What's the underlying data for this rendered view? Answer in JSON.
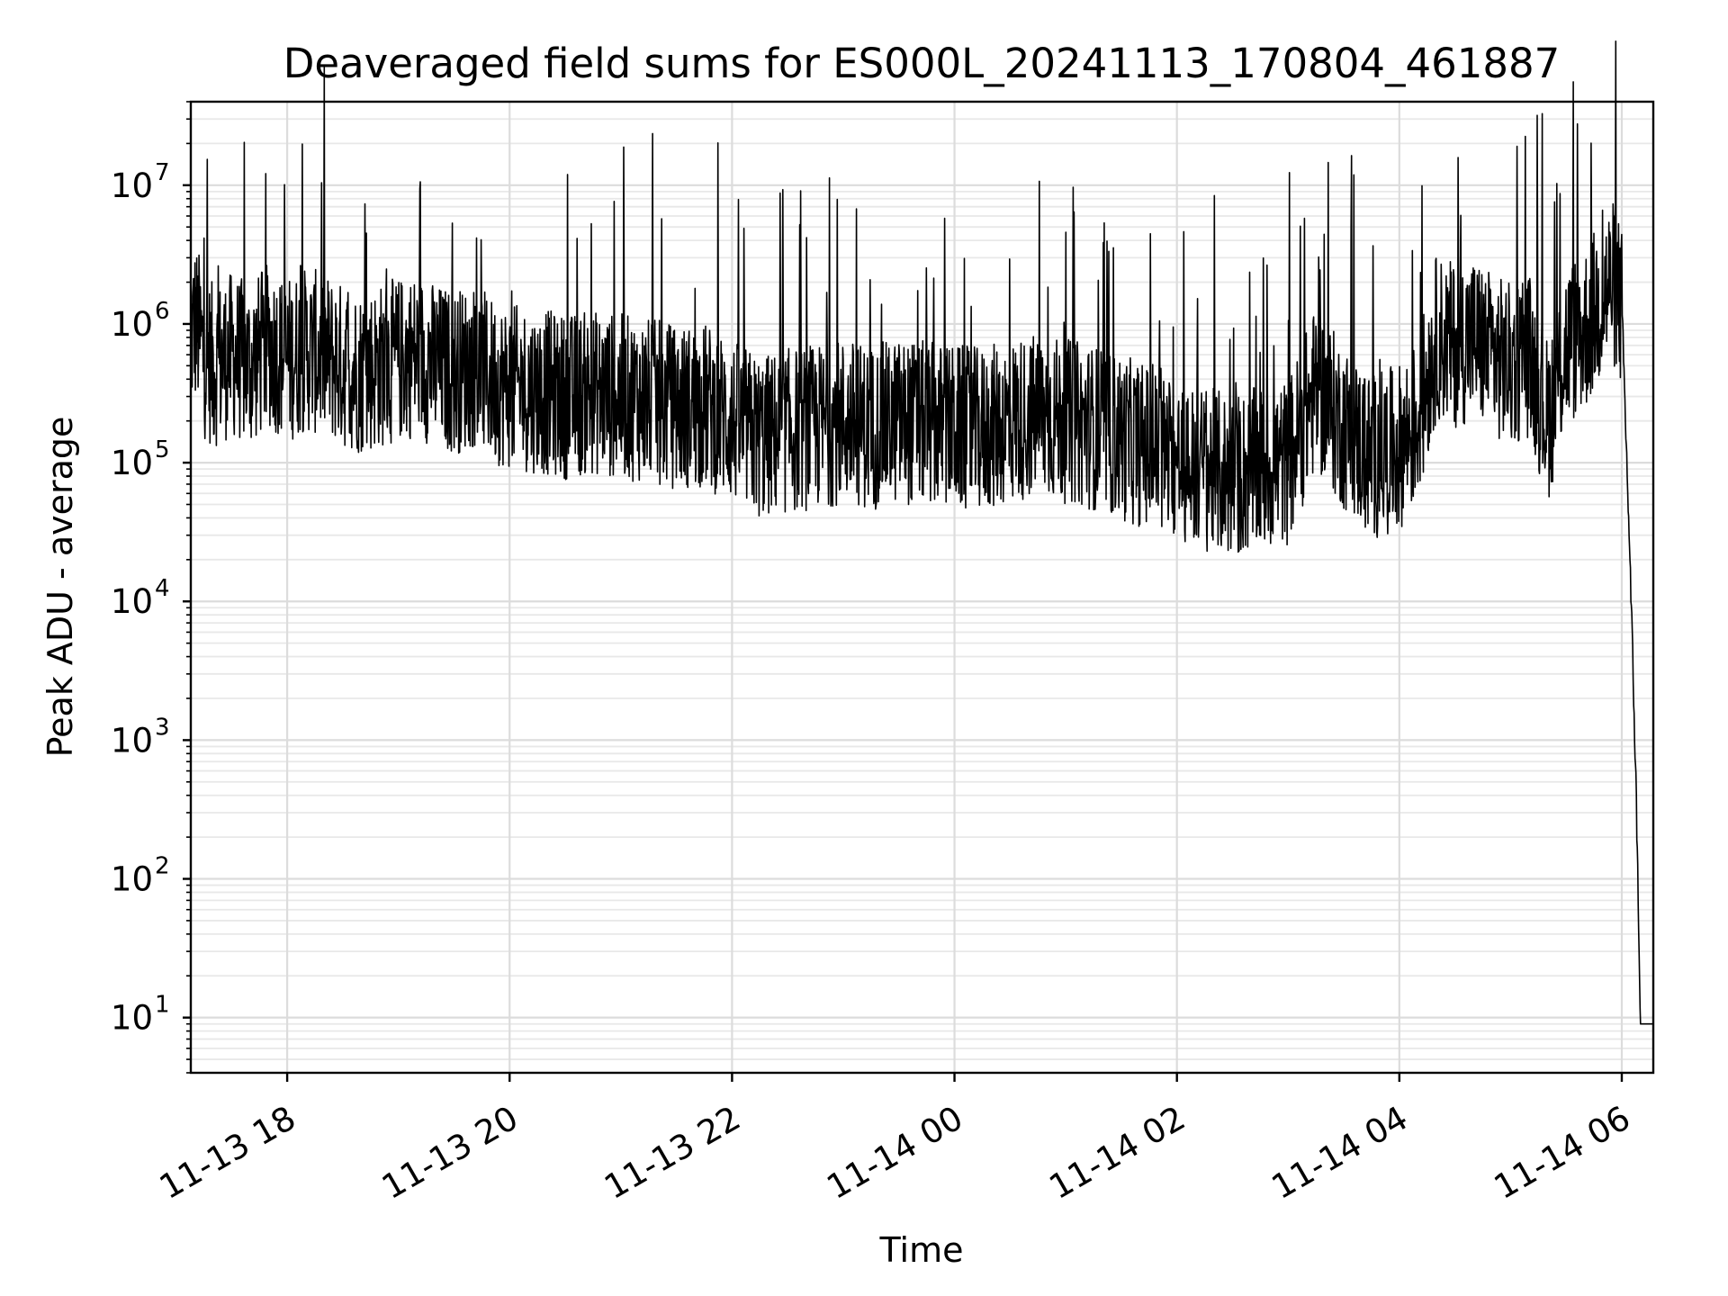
{
  "chart_data": {
    "type": "line",
    "title": "Deaveraged field sums for ES000L_20241113_170804_461887",
    "xlabel": "Time",
    "ylabel": "Peak ADU - average",
    "yscale": "log",
    "ylim": [
      4,
      40000000
    ],
    "xlim": [
      "2024-11-13 17:08",
      "2024-11-14 06:17"
    ],
    "grid": true,
    "x_ticks": [
      {
        "value": "2024-11-13 18:00",
        "label": "11-13 18"
      },
      {
        "value": "2024-11-13 20:00",
        "label": "11-13 20"
      },
      {
        "value": "2024-11-13 22:00",
        "label": "11-13 22"
      },
      {
        "value": "2024-11-14 00:00",
        "label": "11-14 00"
      },
      {
        "value": "2024-11-14 02:00",
        "label": "11-14 02"
      },
      {
        "value": "2024-11-14 04:00",
        "label": "11-14 04"
      },
      {
        "value": "2024-11-14 06:00",
        "label": "11-14 06"
      }
    ],
    "y_ticks": [
      {
        "value": 10,
        "base": "10",
        "exp": "1"
      },
      {
        "value": 100,
        "base": "10",
        "exp": "2"
      },
      {
        "value": 1000,
        "base": "10",
        "exp": "3"
      },
      {
        "value": 10000,
        "base": "10",
        "exp": "4"
      },
      {
        "value": 100000,
        "base": "10",
        "exp": "5"
      },
      {
        "value": 1000000,
        "base": "10",
        "exp": "6"
      },
      {
        "value": 10000000,
        "base": "10",
        "exp": "7"
      }
    ],
    "series": [
      {
        "color": "#000000",
        "x": [
          "2024-11-13 17:08",
          "2024-11-13 17:10",
          "2024-11-13 17:12",
          "2024-11-13 17:15",
          "2024-11-13 17:20",
          "2024-11-13 17:30",
          "2024-11-13 17:40",
          "2024-11-13 17:50",
          "2024-11-13 18:00",
          "2024-11-13 18:10",
          "2024-11-13 18:20",
          "2024-11-13 18:30",
          "2024-11-13 18:40",
          "2024-11-13 18:50",
          "2024-11-13 19:00",
          "2024-11-13 19:10",
          "2024-11-13 19:20",
          "2024-11-13 19:30",
          "2024-11-13 19:40",
          "2024-11-13 19:50",
          "2024-11-13 20:00",
          "2024-11-13 20:15",
          "2024-11-13 20:30",
          "2024-11-13 20:45",
          "2024-11-13 21:00",
          "2024-11-13 21:15",
          "2024-11-13 21:30",
          "2024-11-13 21:45",
          "2024-11-13 22:00",
          "2024-11-13 22:15",
          "2024-11-13 22:30",
          "2024-11-13 22:45",
          "2024-11-13 23:00",
          "2024-11-13 23:15",
          "2024-11-13 23:30",
          "2024-11-13 23:45",
          "2024-11-14 00:00",
          "2024-11-14 00:15",
          "2024-11-14 00:30",
          "2024-11-14 00:45",
          "2024-11-14 01:00",
          "2024-11-14 01:15",
          "2024-11-14 01:30",
          "2024-11-14 01:45",
          "2024-11-14 02:00",
          "2024-11-14 02:15",
          "2024-11-14 02:30",
          "2024-11-14 02:45",
          "2024-11-14 03:00",
          "2024-11-14 03:15",
          "2024-11-14 03:30",
          "2024-11-14 03:45",
          "2024-11-14 04:00",
          "2024-11-14 04:10",
          "2024-11-14 04:20",
          "2024-11-14 04:30",
          "2024-11-14 04:40",
          "2024-11-14 04:50",
          "2024-11-14 05:00",
          "2024-11-14 05:10",
          "2024-11-14 05:20",
          "2024-11-14 05:30",
          "2024-11-14 05:40",
          "2024-11-14 05:50",
          "2024-11-14 05:55",
          "2024-11-14 06:00",
          "2024-11-14 06:02",
          "2024-11-14 06:04",
          "2024-11-14 06:06",
          "2024-11-14 06:08",
          "2024-11-14 06:10",
          "2024-11-14 06:17"
        ],
        "values": [
          800000,
          1000000,
          900000,
          600000,
          500000,
          600000,
          500000,
          700000,
          550000,
          650000,
          600000,
          500000,
          450000,
          500000,
          550000,
          600000,
          500000,
          450000,
          500000,
          400000,
          350000,
          330000,
          300000,
          320000,
          300000,
          280000,
          250000,
          260000,
          200000,
          150000,
          170000,
          180000,
          200000,
          180000,
          200000,
          190000,
          180000,
          170000,
          200000,
          220000,
          200000,
          180000,
          150000,
          130000,
          100000,
          90000,
          80000,
          90000,
          100000,
          350000,
          180000,
          110000,
          130000,
          200000,
          800000,
          700000,
          800000,
          600000,
          500000,
          600000,
          200000,
          700000,
          900000,
          1600000,
          2000000,
          1300000,
          200000,
          30000,
          3500,
          300,
          9,
          9
        ]
      }
    ]
  }
}
